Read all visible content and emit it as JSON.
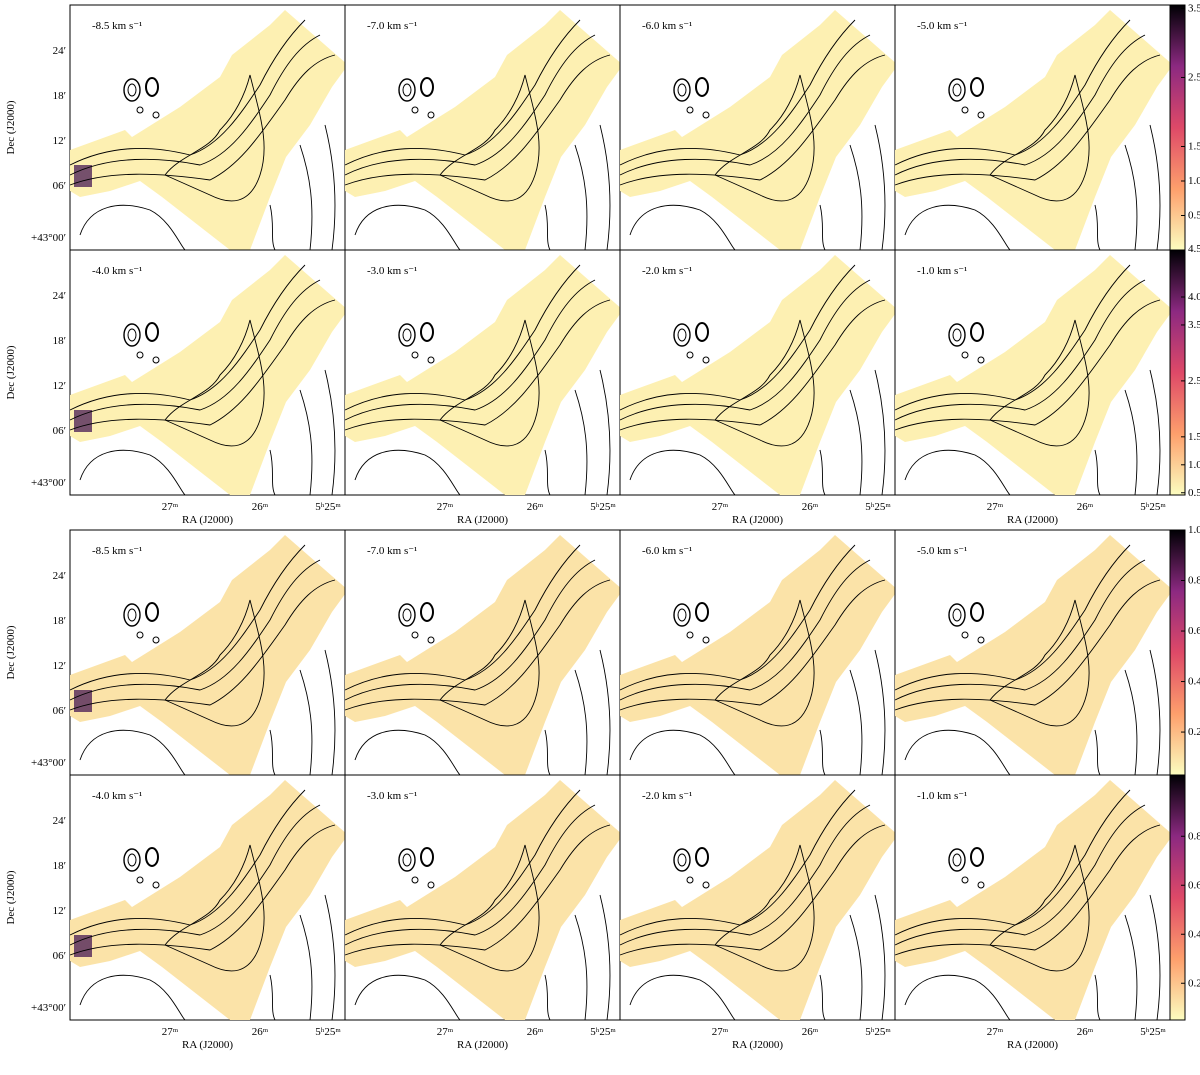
{
  "blocks": [
    {
      "rows": [
        {
          "panels": [
            "-8.5 km s⁻¹",
            "-7.0 km s⁻¹",
            "-6.0 km s⁻¹",
            "-5.0 km s⁻¹"
          ],
          "colorbar_lim": [
            0,
            3.55
          ],
          "colorbar_ticks": [
            3.5,
            2.5,
            1.5,
            {
              "value": 1.0,
              "label": "1.0"
            },
            0.5
          ],
          "colorbar_bottom_label": "4.5"
        },
        {
          "panels": [
            "-4.0 km s⁻¹",
            "-3.0 km s⁻¹",
            "-2.0 km s⁻¹",
            "-1.0 km s⁻¹"
          ],
          "colorbar_lim": [
            0.46,
            4.84
          ],
          "colorbar_ticks": [
            {
              "value": 4.0,
              "label": "4.0"
            },
            3.5,
            2.5,
            1.5,
            {
              "value": 1.0,
              "label": "1.0"
            },
            0.5
          ]
        }
      ]
    },
    {
      "rows": [
        {
          "panels": [
            "-8.5 km s⁻¹",
            "-7.0 km s⁻¹",
            "-6.0 km s⁻¹",
            "-5.0 km s⁻¹"
          ],
          "colorbar_lim": [
            0.03,
            1.0
          ],
          "colorbar_ticks": [
            {
              "value": 1.0,
              "label": "1.0"
            },
            0.8,
            0.6,
            0.4,
            0.2
          ]
        },
        {
          "panels": [
            "-4.0 km s⁻¹",
            "-3.0 km s⁻¹",
            "-2.0 km s⁻¹",
            "-1.0 km s⁻¹"
          ],
          "colorbar_lim": [
            0.05,
            1.05
          ],
          "colorbar_ticks": [
            0.8,
            0.6,
            0.4,
            0.2
          ]
        }
      ]
    }
  ],
  "y_axis_label": "Dec (J2000)",
  "y_ticks": [
    "24′",
    "18′",
    "12′",
    "06′",
    "+43°00′"
  ],
  "x_axis_label": "RA (J2000)",
  "x_ticks": [
    "27ᵐ",
    "26ᵐ",
    "5ʰ25ᵐ"
  ]
}
